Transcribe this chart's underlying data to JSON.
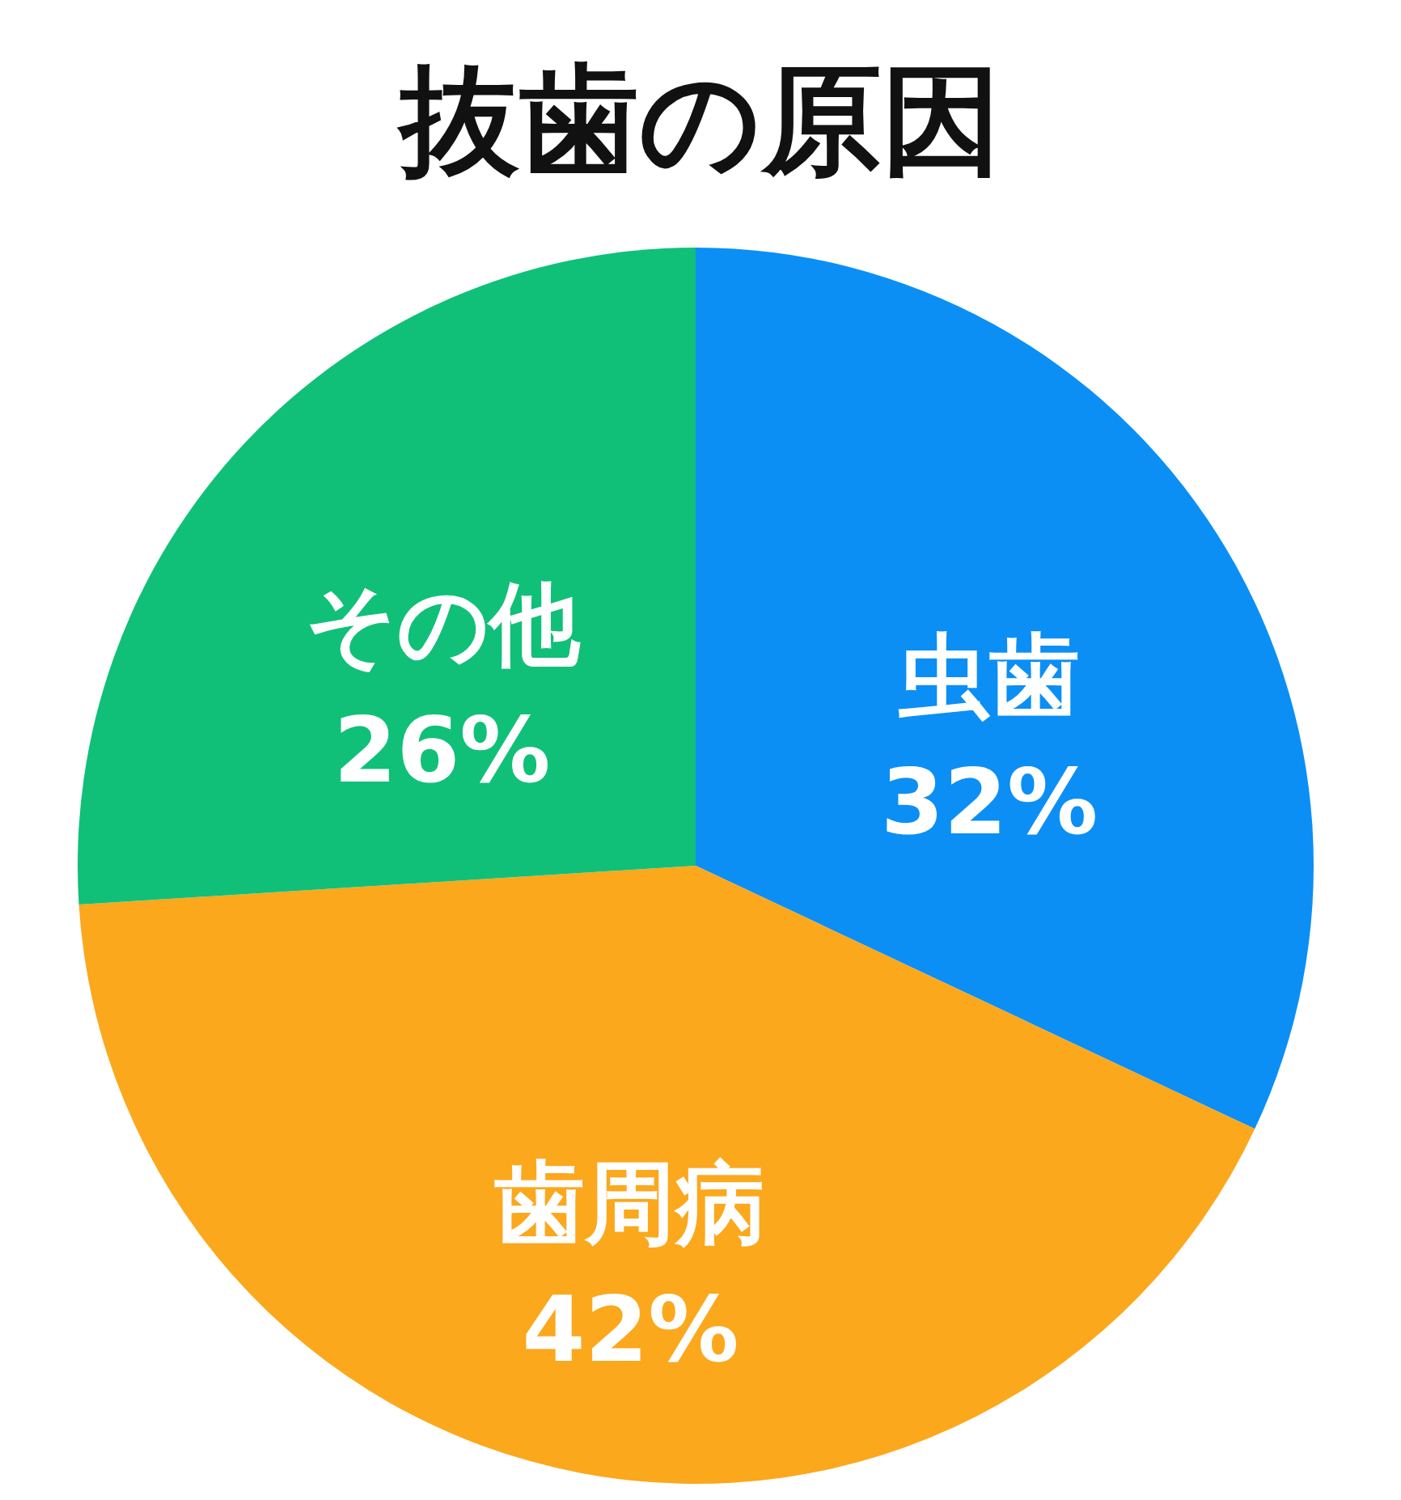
{
  "chart_data": {
    "type": "pie",
    "title": "抜歯の原因",
    "categories": [
      "虫歯",
      "歯周病",
      "その他"
    ],
    "values": [
      32,
      42,
      26
    ],
    "colors": [
      "#0b8ff5",
      "#fba81d",
      "#10c078"
    ],
    "value_labels": [
      "32%",
      "42%",
      "26%"
    ]
  }
}
